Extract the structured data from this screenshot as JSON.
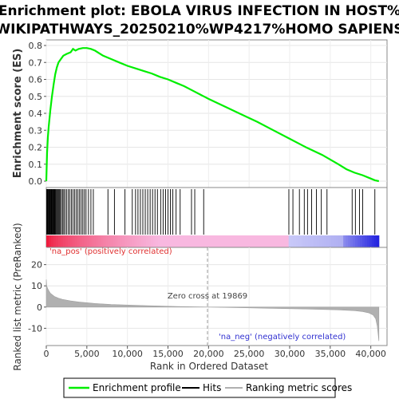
{
  "chart_data": {
    "type": "line",
    "title_line1": "Enrichment plot: EBOLA VIRUS INFECTION IN HOST%",
    "title_line2": "WIKIPATHWAYS_20250210%WP4217%HOMO SAPIENS",
    "es_panel": {
      "ylabel": "Enrichment score (ES)",
      "ylim": [
        0.0,
        0.8
      ],
      "yticks": [
        "0.0",
        "0.1",
        "0.2",
        "0.3",
        "0.4",
        "0.5",
        "0.6",
        "0.7",
        "0.8"
      ],
      "series": [
        {
          "name": "Enrichment profile",
          "color": "#00ee00",
          "x": [
            0,
            100,
            200,
            300,
            500,
            700,
            900,
            1100,
            1300,
            1500,
            1800,
            2100,
            2500,
            3000,
            3300,
            3600,
            4000,
            4500,
            5000,
            5500,
            6000,
            7000,
            8000,
            9000,
            10000,
            11000,
            12000,
            13000,
            14000,
            15000,
            16000,
            17000,
            18000,
            19000,
            20000,
            22000,
            24000,
            26000,
            28000,
            30000,
            32000,
            34000,
            36000,
            37000,
            38000,
            39000,
            40000,
            40500,
            41000
          ],
          "y": [
            0.0,
            0.17,
            0.26,
            0.32,
            0.42,
            0.5,
            0.57,
            0.63,
            0.67,
            0.7,
            0.72,
            0.74,
            0.75,
            0.76,
            0.78,
            0.77,
            0.78,
            0.785,
            0.785,
            0.78,
            0.77,
            0.74,
            0.72,
            0.7,
            0.68,
            0.665,
            0.65,
            0.635,
            0.615,
            0.6,
            0.58,
            0.56,
            0.535,
            0.51,
            0.485,
            0.44,
            0.395,
            0.35,
            0.3,
            0.25,
            0.2,
            0.155,
            0.1,
            0.07,
            0.05,
            0.035,
            0.015,
            0.005,
            0.0
          ]
        }
      ]
    },
    "hits": {
      "name": "Hits",
      "positions": [
        50,
        120,
        180,
        250,
        320,
        400,
        460,
        520,
        600,
        680,
        750,
        820,
        900,
        980,
        1050,
        1120,
        1200,
        1300,
        1400,
        1500,
        1600,
        1700,
        1850,
        2000,
        2150,
        2300,
        2500,
        2700,
        2900,
        3100,
        3300,
        3500,
        3700,
        3900,
        4100,
        4300,
        4500,
        4700,
        4900,
        5200,
        5500,
        5800,
        7600,
        8400,
        9700,
        10600,
        11000,
        11300,
        11600,
        11900,
        12200,
        12500,
        12800,
        13100,
        13400,
        13700,
        14100,
        14400,
        14700,
        15000,
        15300,
        15600,
        16000,
        16500,
        17900,
        18300,
        19400,
        29900,
        30400,
        31200,
        31800,
        32200,
        32700,
        33300,
        33900,
        34600,
        37700,
        38100,
        38600,
        39000,
        40500
      ]
    },
    "ranked_panel": {
      "ylabel": "Ranked list metric (PreRanked)",
      "ylim": [
        -17,
        27
      ],
      "yticks": [
        "-10",
        "0",
        "10",
        "20"
      ],
      "series": [
        {
          "name": "Ranking metric scores",
          "color": "#b0b0b0",
          "x": [
            0,
            50,
            200,
            500,
            1000,
            1500,
            2000,
            3000,
            4000,
            6000,
            8000,
            12000,
            16000,
            19869,
            24000,
            28000,
            32000,
            36000,
            38000,
            39000,
            39800,
            40300,
            40600,
            40800,
            41000
          ],
          "y": [
            13,
            10,
            8.5,
            6.5,
            5,
            4.2,
            3.6,
            2.9,
            2.4,
            1.7,
            1.2,
            0.7,
            0.3,
            0.0,
            -0.3,
            -0.6,
            -0.9,
            -1.3,
            -1.7,
            -2.1,
            -2.8,
            -3.8,
            -5.5,
            -9,
            -16
          ]
        }
      ],
      "zero_cross_label": "Zero cross at 19869",
      "pos_label": "'na_pos' (positively correlated)",
      "neg_label": "'na_neg' (negatively correlated)"
    },
    "xaxis": {
      "label": "Rank in Ordered Dataset",
      "xlim": [
        0,
        42000
      ],
      "ticks": [
        0,
        5000,
        10000,
        15000,
        20000,
        25000,
        30000,
        35000,
        40000
      ],
      "tick_labels": [
        "0",
        "5,000",
        "10,000",
        "15,000",
        "20,000",
        "25,000",
        "30,000",
        "35,000",
        "40,000"
      ]
    },
    "legend": {
      "placement": "bottom",
      "items": [
        {
          "name": "Enrichment profile",
          "color": "#00ee00"
        },
        {
          "name": "Hits",
          "color": "#000000"
        },
        {
          "name": "Ranking metric scores",
          "color": "#b0b0b0"
        }
      ]
    },
    "heat_band_colors": {
      "strong_pos": "#ee1133",
      "weak_pos": "#f8b8e0",
      "weak_neg": "#c8c8f8",
      "strong_neg": "#2020e0"
    }
  }
}
